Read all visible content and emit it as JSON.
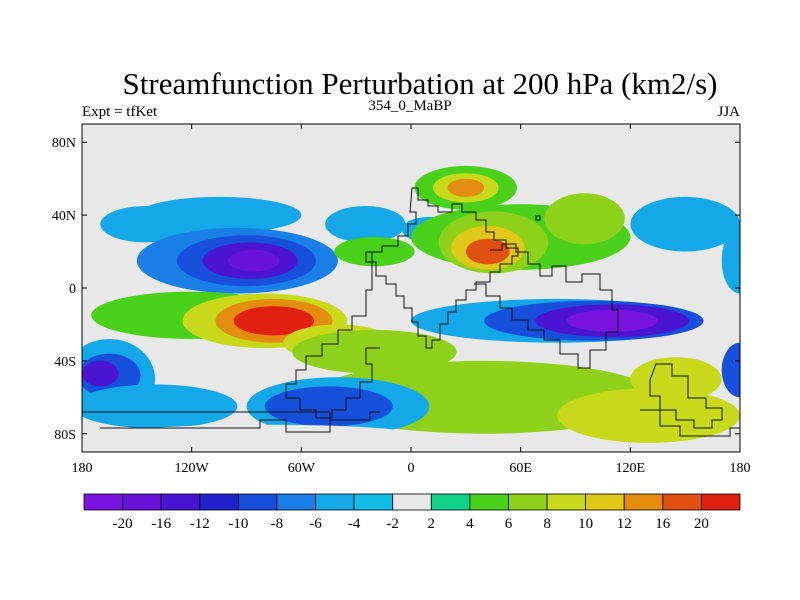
{
  "chart_data": {
    "type": "heatmap",
    "title": "Streamfunction Perturbation at 200 hPa (km2/s)",
    "left_label": "Expt = tfKet",
    "center_label": "354_0_MaBP",
    "right_label": "JJA",
    "x_ticks": [
      {
        "lon": -180,
        "label": "180"
      },
      {
        "lon": -120,
        "label": "120W"
      },
      {
        "lon": -60,
        "label": "60W"
      },
      {
        "lon": 0,
        "label": "0"
      },
      {
        "lon": 60,
        "label": "60E"
      },
      {
        "lon": 120,
        "label": "120E"
      },
      {
        "lon": 180,
        "label": "180"
      }
    ],
    "y_ticks": [
      {
        "lat": 80,
        "label": "80N"
      },
      {
        "lat": 40,
        "label": "40N"
      },
      {
        "lat": 0,
        "label": "0"
      },
      {
        "lat": -40,
        "label": "40S"
      },
      {
        "lat": -80,
        "label": "80S"
      }
    ],
    "xlim": [
      -180,
      180
    ],
    "ylim": [
      -90,
      90
    ],
    "colorbar": {
      "labels": [
        "-20",
        "-16",
        "-12",
        "-10",
        "-8",
        "-6",
        "-4",
        "-2",
        "2",
        "4",
        "6",
        "8",
        "10",
        "12",
        "16",
        "20"
      ],
      "colors": [
        "#7a14e0",
        "#6a12d8",
        "#4a14d0",
        "#2222cc",
        "#1750dd",
        "#1a7fe6",
        "#14a8e8",
        "#12bce4",
        "#e8e8e8",
        "#12d088",
        "#48d01a",
        "#8ed01a",
        "#c8d81a",
        "#e0c818",
        "#e48c10",
        "#e05010",
        "#e02010"
      ]
    },
    "blobs": [
      {
        "lon": -145,
        "lat": 35,
        "rlon": 25,
        "rlat": 10,
        "level": "-4"
      },
      {
        "lon": -105,
        "lat": 40,
        "rlon": 45,
        "rlat": 10,
        "level": "-4"
      },
      {
        "lon": -95,
        "lat": 15,
        "rlon": 55,
        "rlat": 18,
        "level": "-6"
      },
      {
        "lon": -90,
        "lat": 15,
        "rlon": 38,
        "rlat": 14,
        "level": "-8"
      },
      {
        "lon": -88,
        "lat": 15,
        "rlon": 26,
        "rlat": 10,
        "level": "-12"
      },
      {
        "lon": -86,
        "lat": 15,
        "rlon": 14,
        "rlat": 6,
        "level": "-16"
      },
      {
        "lon": -25,
        "lat": 35,
        "rlon": 22,
        "rlat": 10,
        "level": "-4"
      },
      {
        "lon": 10,
        "lat": 32,
        "rlon": 15,
        "rlat": 7,
        "level": "-4"
      },
      {
        "lon": 30,
        "lat": 55,
        "rlon": 28,
        "rlat": 12,
        "level": "4"
      },
      {
        "lon": 30,
        "lat": 55,
        "rlon": 18,
        "rlat": 8,
        "level": "8"
      },
      {
        "lon": 30,
        "lat": 55,
        "rlon": 10,
        "rlat": 5,
        "level": "12"
      },
      {
        "lon": 60,
        "lat": 28,
        "rlon": 60,
        "rlat": 18,
        "level": "4"
      },
      {
        "lon": 45,
        "lat": 25,
        "rlon": 30,
        "rlat": 17,
        "level": "6"
      },
      {
        "lon": 42,
        "lat": 22,
        "rlon": 20,
        "rlat": 12,
        "level": "10"
      },
      {
        "lon": 42,
        "lat": 20,
        "rlon": 12,
        "rlat": 7,
        "level": "16"
      },
      {
        "lon": 95,
        "lat": 38,
        "rlon": 22,
        "rlat": 14,
        "level": "6"
      },
      {
        "lon": -20,
        "lat": 20,
        "rlon": 22,
        "rlat": 8,
        "level": "4"
      },
      {
        "lon": 150,
        "lat": 35,
        "rlon": 30,
        "rlat": 15,
        "level": "-4"
      },
      {
        "lon": 180,
        "lat": 15,
        "rlon": 10,
        "rlat": 18,
        "level": "-4"
      },
      {
        "lon": -120,
        "lat": -15,
        "rlon": 55,
        "rlat": 13,
        "level": "4"
      },
      {
        "lon": -80,
        "lat": -18,
        "rlon": 45,
        "rlat": 15,
        "level": "8"
      },
      {
        "lon": -75,
        "lat": -18,
        "rlon": 32,
        "rlat": 12,
        "level": "12"
      },
      {
        "lon": -75,
        "lat": -18,
        "rlon": 22,
        "rlat": 8,
        "level": "20"
      },
      {
        "lon": -40,
        "lat": -30,
        "rlon": 30,
        "rlat": 10,
        "level": "8"
      },
      {
        "lon": -20,
        "lat": -35,
        "rlon": 45,
        "rlat": 12,
        "level": "6"
      },
      {
        "lon": 80,
        "lat": -18,
        "rlon": 80,
        "rlat": 12,
        "level": "-4"
      },
      {
        "lon": 100,
        "lat": -18,
        "rlon": 60,
        "rlat": 11,
        "level": "-8"
      },
      {
        "lon": 110,
        "lat": -18,
        "rlon": 42,
        "rlat": 9,
        "level": "-12"
      },
      {
        "lon": 110,
        "lat": -18,
        "rlon": 25,
        "rlat": 6,
        "level": "-20"
      },
      {
        "lon": 40,
        "lat": -60,
        "rlon": 95,
        "rlat": 20,
        "level": "6"
      },
      {
        "lon": 130,
        "lat": -70,
        "rlon": 50,
        "rlat": 15,
        "level": "8"
      },
      {
        "lon": 145,
        "lat": -50,
        "rlon": 25,
        "rlat": 12,
        "level": "8"
      },
      {
        "lon": -165,
        "lat": -50,
        "rlon": 25,
        "rlat": 22,
        "level": "-4"
      },
      {
        "lon": -165,
        "lat": -48,
        "rlon": 17,
        "rlat": 12,
        "level": "-8"
      },
      {
        "lon": -170,
        "lat": -47,
        "rlon": 10,
        "rlat": 7,
        "level": "-12"
      },
      {
        "lon": -140,
        "lat": -65,
        "rlon": 45,
        "rlat": 12,
        "level": "-4"
      },
      {
        "lon": -40,
        "lat": -65,
        "rlon": 50,
        "rlat": 16,
        "level": "-4"
      },
      {
        "lon": -45,
        "lat": -65,
        "rlon": 35,
        "rlat": 11,
        "level": "-8"
      },
      {
        "lon": -80,
        "lat": -80,
        "rlon": 80,
        "rlat": 5,
        "level": "-2"
      },
      {
        "lon": 180,
        "lat": -45,
        "rlon": 10,
        "rlat": 15,
        "level": "-8"
      }
    ]
  }
}
